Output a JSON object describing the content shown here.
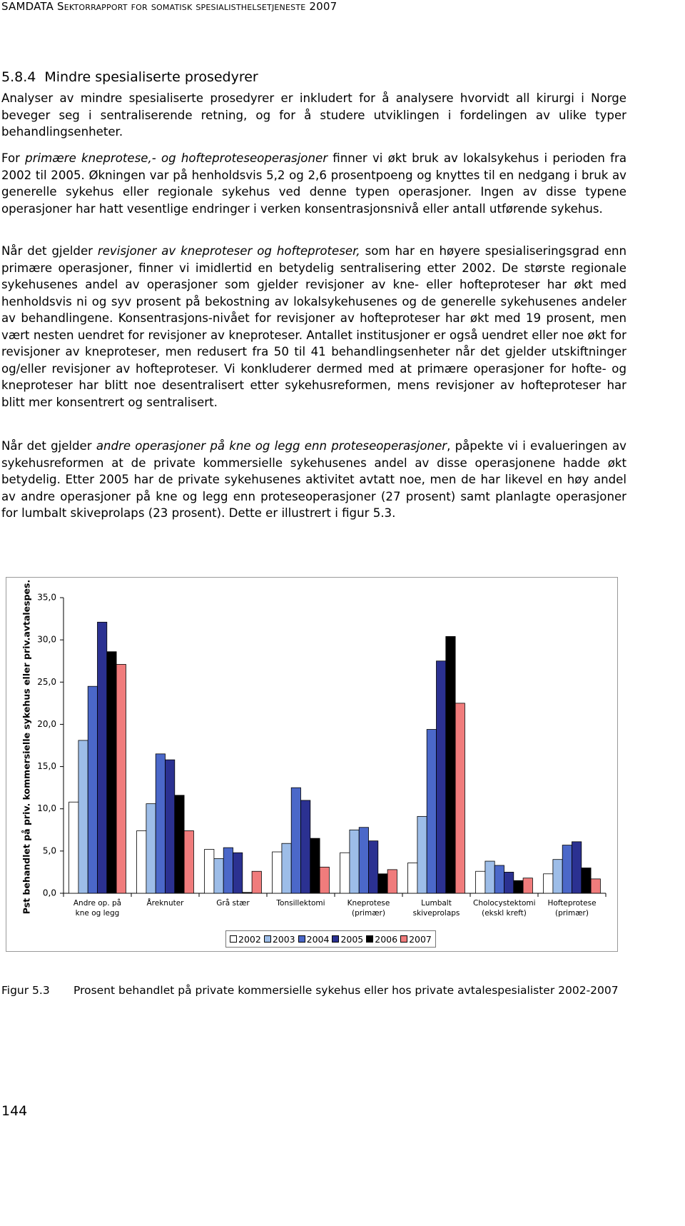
{
  "header": "SAMDATA Sektorrapport for somatisk spesialisthelsetjeneste 2007",
  "section": {
    "number": "5.8.4",
    "title": "Mindre spesialiserte prosedyrer"
  },
  "paragraphs": [
    [
      "Analyser av mindre spesialiserte prosedyrer er inkludert for å analysere hvorvidt all kirurgi i Norge beveger seg i sentraliserende retning, og for å studere utviklingen i fordelingen av ulike typer behandlingsenheter."
    ],
    [
      "For ",
      "primære kneprotese,- og hofteproteseoperasjoner",
      " finner vi økt bruk av lokalsykehus i perioden fra 2002 til 2005. Økningen var på henholdsvis 5,2 og 2,6 prosentpoeng og knyttes til en nedgang i bruk av generelle sykehus eller regionale sykehus ved denne typen operasjoner. Ingen av disse typene operasjoner har hatt vesentlige endringer i verken konsentrasjonsnivå eller antall utførende sykehus."
    ],
    [
      "Når det gjelder ",
      "revisjoner av kneproteser og hofteproteser,",
      " som har en høyere spesialiseringsgrad enn primære operasjoner, finner vi imidlertid en betydelig sentralisering etter 2002. De største regionale sykehusenes andel av operasjoner som gjelder revisjoner av kne- eller hofteproteser har økt med henholdsvis ni og syv prosent på bekostning av lokalsykehusenes og de generelle sykehusenes andeler av behandlingene. Konsentrasjons-nivået for revisjoner av hofteproteser har økt med 19 prosent, men vært nesten uendret for revisjoner av kneproteser. Antallet institusjoner er også uendret eller noe økt for revisjoner av kneproteser, men redusert fra 50 til 41 behandlingsenheter når det gjelder utskiftninger og/eller revisjoner av hofteproteser. Vi konkluderer dermed med at primære operasjoner for hofte- og kneproteser har blitt noe desentralisert etter sykehusreformen, mens revisjoner av hofteproteser har blitt mer konsentrert og sentralisert."
    ],
    [
      "Når det gjelder ",
      "andre operasjoner på kne og legg enn proteseoperasjoner",
      ", påpekte vi i evalueringen av sykehusreformen at de private kommersielle sykehusenes andel av disse operasjonene hadde økt betydelig. Etter 2005 har de private sykehusenes aktivitet avtatt noe, men de har likevel en høy andel av andre operasjoner på kne og legg enn proteseoperasjoner (27 prosent) samt planlagte operasjoner for lumbalt skiveprolaps (23 prosent). Dette er illustrert i figur 5.3."
    ]
  ],
  "chart_data": {
    "type": "bar",
    "y_label": "Pst behandlet på priv. kommersielle sykehus eller priv.avtalespes.",
    "categories": [
      "Andre op. på kne og legg",
      "Åreknuter",
      "Grå stær",
      "Tonsillektomi",
      "Kneprotese (primær)",
      "Lumbalt skiveprolaps",
      "Cholocystektomi (ekskl kreft)",
      "Hofteprotese (primær)"
    ],
    "series": [
      {
        "name": "2002",
        "color": "#ffffff",
        "values": [
          10.8,
          7.4,
          5.2,
          4.9,
          4.8,
          3.6,
          2.6,
          2.3
        ]
      },
      {
        "name": "2003",
        "color": "#9dbde8",
        "values": [
          18.1,
          10.6,
          4.1,
          5.9,
          7.5,
          9.1,
          3.8,
          4.0
        ]
      },
      {
        "name": "2004",
        "color": "#4b68c9",
        "values": [
          24.5,
          16.5,
          5.4,
          12.5,
          7.8,
          19.4,
          3.3,
          5.7
        ]
      },
      {
        "name": "2005",
        "color": "#2b3191",
        "values": [
          32.1,
          15.8,
          4.8,
          11.0,
          6.2,
          27.5,
          2.5,
          6.1
        ]
      },
      {
        "name": "2006",
        "color": "#000000",
        "values": [
          28.6,
          11.6,
          0.1,
          6.5,
          2.3,
          30.4,
          1.5,
          3.0
        ]
      },
      {
        "name": "2007",
        "color": "#f07c7c",
        "values": [
          27.1,
          7.4,
          2.6,
          3.1,
          2.8,
          22.5,
          1.8,
          1.7
        ]
      }
    ],
    "ylim": [
      0,
      35
    ],
    "yticks": [
      {
        "value": 0,
        "label": "0,0"
      },
      {
        "value": 5,
        "label": "5,0"
      },
      {
        "value": 10,
        "label": "10,0"
      },
      {
        "value": 15,
        "label": "15,0"
      },
      {
        "value": 20,
        "label": "20,0"
      },
      {
        "value": 25,
        "label": "25,0"
      },
      {
        "value": 30,
        "label": "30,0"
      },
      {
        "value": 35,
        "label": "35,0"
      }
    ],
    "grid": false
  },
  "caption": {
    "label": "Figur 5.3",
    "text": "Prosent behandlet på private kommersielle sykehus eller hos private avtalespesialister 2002-2007"
  },
  "page_number": "144"
}
